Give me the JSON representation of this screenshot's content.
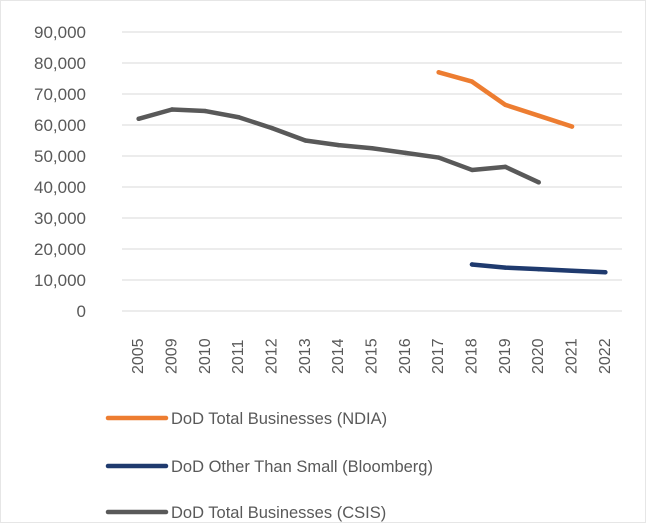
{
  "chart_data": {
    "type": "line",
    "categories": [
      "2005",
      "2009",
      "2010",
      "2011",
      "2012",
      "2013",
      "2014",
      "2015",
      "2016",
      "2017",
      "2018",
      "2019",
      "2020",
      "2021",
      "2022"
    ],
    "ylim": [
      0,
      90000
    ],
    "yticks": [
      0,
      10000,
      20000,
      30000,
      40000,
      50000,
      60000,
      70000,
      80000,
      90000
    ],
    "ytick_labels": [
      "0",
      "10,000",
      "20,000",
      "30,000",
      "40,000",
      "50,000",
      "60,000",
      "70,000",
      "80,000",
      "90,000"
    ],
    "grid": true,
    "legend_position": "bottom",
    "series": [
      {
        "name": "DoD Total Businesses (NDIA)",
        "color": "#ED7D31",
        "values": [
          null,
          null,
          null,
          null,
          null,
          null,
          null,
          null,
          null,
          77000,
          74000,
          66500,
          63000,
          59500,
          null
        ]
      },
      {
        "name": "DoD Other Than Small (Bloomberg)",
        "color": "#1F3A6E",
        "values": [
          null,
          null,
          null,
          null,
          null,
          null,
          null,
          null,
          null,
          null,
          15000,
          14000,
          13500,
          13000,
          12500
        ]
      },
      {
        "name": "DoD Total Businesses (CSIS)",
        "color": "#595959",
        "values": [
          62000,
          65000,
          64500,
          62500,
          59000,
          55000,
          53500,
          52500,
          51000,
          49500,
          45500,
          46500,
          41500,
          null,
          null
        ]
      }
    ]
  }
}
